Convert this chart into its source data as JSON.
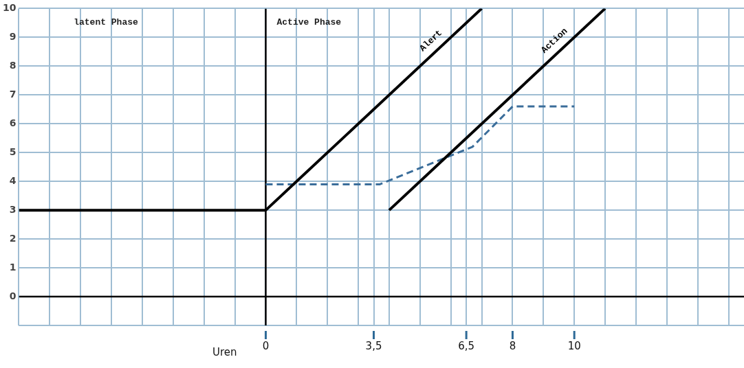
{
  "chart_data": {
    "type": "line",
    "xlabel": "Uren",
    "xlim": [
      -8,
      15.5
    ],
    "ylim": [
      -1,
      10
    ],
    "xticks": [
      {
        "value": -8,
        "label": null
      },
      {
        "value": -7,
        "label": null
      },
      {
        "value": -6,
        "label": null
      },
      {
        "value": -5,
        "label": null
      },
      {
        "value": -4,
        "label": null
      },
      {
        "value": -3,
        "label": null
      },
      {
        "value": -2,
        "label": null
      },
      {
        "value": -1,
        "label": null
      },
      0,
      {
        "value": 1,
        "label": null
      },
      {
        "value": 2,
        "label": null
      },
      {
        "value": 3,
        "label": null
      },
      {
        "value": 3.5,
        "label": "3,5"
      },
      {
        "value": 4,
        "label": null
      },
      {
        "value": 5,
        "label": null
      },
      {
        "value": 6,
        "label": null
      },
      {
        "value": 6.5,
        "label": "6,5"
      },
      {
        "value": 7,
        "label": null
      },
      8,
      {
        "value": 9,
        "label": null
      },
      10,
      {
        "value": 11,
        "label": null
      },
      {
        "value": 12,
        "label": null
      },
      {
        "value": 13,
        "label": null
      },
      {
        "value": 14,
        "label": null
      },
      {
        "value": 15,
        "label": null
      }
    ],
    "yticks": [
      {
        "value": -1,
        "label": null
      },
      0,
      1,
      2,
      3,
      4,
      5,
      6,
      7,
      8,
      9,
      10
    ],
    "grid": true,
    "legend": false,
    "marker": "none",
    "annotations": [
      "latent Phase",
      "Active Phase"
    ],
    "series": [
      {
        "name": "Alert",
        "color": "#000000",
        "line_style": "solid",
        "x": [
          -8,
          0,
          7
        ],
        "values": [
          3,
          3,
          10
        ]
      },
      {
        "name": "Action",
        "color": "#000000",
        "line_style": "solid",
        "x": [
          4,
          11
        ],
        "values": [
          3,
          10
        ]
      },
      {
        "color": "#3a6d9a",
        "line_style": "dashed",
        "x": [
          0,
          3.7,
          6.7,
          8,
          10
        ],
        "values": [
          3.9,
          3.9,
          5.2,
          6.6,
          6.6
        ]
      },
      {
        "color": "#000000",
        "line_style": "solid",
        "x": [
          0,
          0
        ],
        "values": [
          -1,
          10
        ]
      },
      {
        "color": "#000000",
        "line_style": "solid",
        "x": [
          -8,
          15.5
        ],
        "values": [
          0,
          0
        ]
      }
    ]
  }
}
